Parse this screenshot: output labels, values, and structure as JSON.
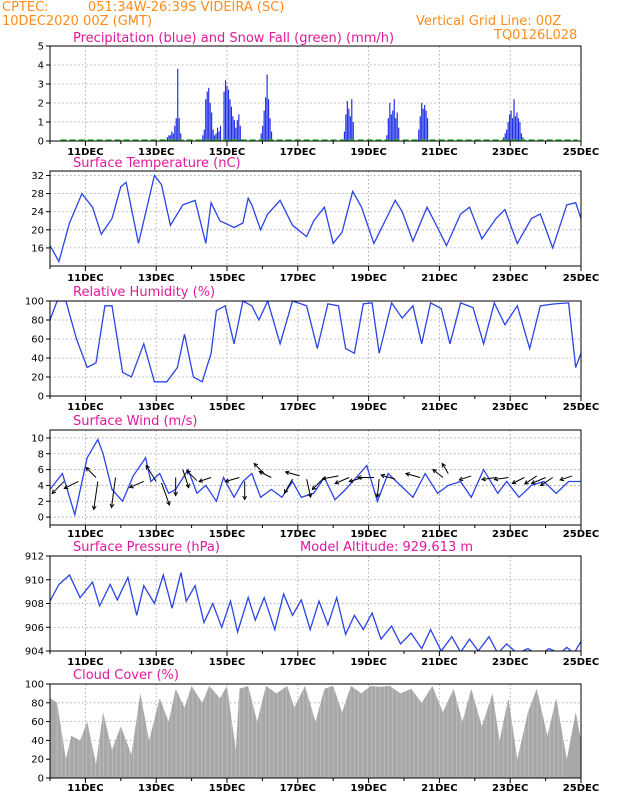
{
  "header": {
    "source": "CPTEC:",
    "location": "051:34W-26:39S  VIDEIRA (SC)",
    "datetime": "10DEC2020 00Z (GMT)",
    "grid_note": "Vertical Grid Line: 00Z",
    "code": "TQ0126L028"
  },
  "colors": {
    "header": "#ff8c1a",
    "title": "#e0189a",
    "line": "#2a44e6",
    "precip": "#1f2fe6",
    "snow": "#2eb82e",
    "cloud": "#a8a8a8"
  },
  "x_labels": [
    "11DEC",
    "13DEC",
    "15DEC",
    "17DEC",
    "19DEC",
    "21DEC",
    "23DEC",
    "25DEC"
  ],
  "chart_data": [
    {
      "id": "precip",
      "type": "bar",
      "title": "Precipitation (blue) and Snow Fall (green) (mm/h)",
      "ylim": [
        0,
        5
      ],
      "yticks": [
        0,
        1,
        2,
        3,
        4,
        5
      ],
      "series": [
        {
          "name": "Precipitation",
          "color": "#1f2fe6",
          "bursts": [
            {
              "day": 13.3,
              "values": [
                0.2,
                0.3,
                0.3,
                0.5,
                0.4,
                0.8,
                1.2,
                3.8,
                1.2,
                0.4
              ]
            },
            {
              "day": 14.3,
              "values": [
                0.3,
                0.6,
                2.2,
                2.6,
                2.8,
                2.0,
                1.5,
                0.6,
                0.3,
                0.4,
                0.7,
                0.5,
                0.8
              ]
            },
            {
              "day": 14.9,
              "values": [
                2.6,
                3.2,
                2.9,
                2.7,
                2.2,
                1.8,
                1.3,
                1.1,
                0.7,
                1.1,
                1.4,
                0.8
              ]
            },
            {
              "day": 15.95,
              "values": [
                0.4,
                0.8,
                1.6,
                2.3,
                3.5,
                2.2,
                1.2,
                0.5
              ]
            },
            {
              "day": 18.3,
              "values": [
                0.5,
                1.4,
                2.1,
                1.7,
                1.3,
                2.2,
                1.0
              ]
            },
            {
              "day": 19.5,
              "values": [
                0.3,
                1.2,
                2.0,
                1.4,
                1.6,
                2.2,
                1.2,
                1.5,
                0.7
              ]
            },
            {
              "day": 20.4,
              "values": [
                0.6,
                1.3,
                2.0,
                1.7,
                1.9,
                1.6,
                1.2
              ]
            },
            {
              "day": 22.8,
              "values": [
                0.2,
                0.4,
                0.6,
                1.0,
                1.4,
                1.6,
                1.2,
                2.2,
                1.3,
                1.5,
                1.2,
                1.0,
                0.4,
                0.2
              ]
            }
          ]
        },
        {
          "name": "Snow Fall",
          "color": "#2eb82e",
          "values": [
            0
          ]
        }
      ]
    },
    {
      "id": "temp",
      "type": "line",
      "title": "Surface Temperature (nC)",
      "ylim": [
        12,
        33
      ],
      "yticks": [
        16,
        20,
        24,
        28,
        32
      ],
      "x": [
        10,
        10.25,
        10.55,
        10.9,
        11.2,
        11.45,
        11.75,
        12.0,
        12.15,
        12.5,
        12.95,
        13.15,
        13.4,
        13.75,
        14.1,
        14.4,
        14.55,
        14.8,
        15.2,
        15.45,
        15.6,
        15.7,
        15.95,
        16.15,
        16.5,
        16.85,
        17.25,
        17.45,
        17.75,
        18.0,
        18.25,
        18.55,
        18.8,
        19.15,
        19.5,
        19.75,
        19.95,
        20.25,
        20.65,
        20.85,
        21.2,
        21.6,
        21.85,
        22.2,
        22.6,
        22.85,
        23.2,
        23.6,
        23.85,
        24.2,
        24.6,
        24.85,
        25.0
      ],
      "values": [
        16.5,
        13.0,
        21.5,
        28.0,
        25.0,
        19.0,
        22.5,
        29.5,
        30.5,
        17.0,
        32.0,
        30.0,
        21.0,
        25.5,
        26.5,
        17.0,
        26.0,
        22.0,
        20.5,
        21.5,
        27.0,
        25.5,
        20.0,
        23.5,
        26.5,
        21.0,
        18.5,
        22.0,
        25.0,
        17.0,
        19.5,
        28.5,
        25.0,
        17.0,
        22.5,
        26.5,
        24.0,
        17.5,
        25.0,
        22.0,
        16.5,
        23.5,
        25.0,
        18.0,
        22.5,
        24.5,
        17.0,
        22.5,
        23.5,
        16.0,
        25.5,
        26.0,
        22.5
      ]
    },
    {
      "id": "rh",
      "type": "line",
      "title": "Relative Humidity (%)",
      "ylim": [
        0,
        100
      ],
      "yticks": [
        0,
        20,
        40,
        60,
        80,
        100
      ],
      "x": [
        10,
        10.2,
        10.45,
        10.75,
        11.05,
        11.3,
        11.55,
        11.75,
        12.05,
        12.3,
        12.65,
        12.95,
        13.3,
        13.5,
        13.6,
        13.8,
        14.05,
        14.3,
        14.55,
        14.7,
        14.95,
        15.2,
        15.45,
        15.7,
        15.9,
        16.15,
        16.5,
        16.85,
        17.25,
        17.55,
        17.85,
        18.15,
        18.35,
        18.6,
        18.85,
        19.1,
        19.3,
        19.65,
        19.95,
        20.25,
        20.5,
        20.75,
        21.05,
        21.3,
        21.6,
        21.95,
        22.25,
        22.55,
        22.85,
        23.2,
        23.55,
        23.85,
        24.25,
        24.65,
        24.85,
        25.0
      ],
      "values": [
        80,
        100,
        100,
        60,
        30,
        35,
        95,
        95,
        25,
        20,
        55,
        15,
        15,
        25,
        30,
        65,
        20,
        15,
        45,
        90,
        95,
        55,
        100,
        95,
        80,
        100,
        55,
        100,
        95,
        50,
        97,
        95,
        50,
        45,
        97,
        98,
        45,
        98,
        82,
        95,
        55,
        98,
        92,
        55,
        98,
        93,
        55,
        98,
        75,
        95,
        50,
        95,
        97,
        98,
        30,
        45
      ]
    },
    {
      "id": "wind",
      "type": "line",
      "title": "Surface Wind (m/s)",
      "ylim": [
        -1,
        11
      ],
      "yticks": [
        0,
        2,
        4,
        6,
        8,
        10
      ],
      "x": [
        10,
        10.35,
        10.7,
        11.05,
        11.35,
        11.5,
        11.75,
        12.05,
        12.35,
        12.7,
        12.85,
        13.1,
        13.35,
        13.55,
        13.9,
        14.15,
        14.4,
        14.7,
        14.9,
        15.2,
        15.45,
        15.7,
        15.95,
        16.25,
        16.55,
        16.85,
        17.1,
        17.45,
        17.75,
        18.05,
        18.35,
        18.65,
        18.95,
        19.25,
        19.55,
        19.9,
        20.25,
        20.6,
        20.95,
        21.25,
        21.6,
        21.9,
        22.25,
        22.65,
        22.9,
        23.25,
        23.6,
        23.95,
        24.3,
        24.65,
        25.0
      ],
      "values": [
        3.5,
        5.5,
        0.3,
        7.5,
        9.8,
        8.0,
        3.5,
        2.0,
        5.2,
        7.5,
        4.5,
        5.5,
        3.0,
        3.5,
        6.0,
        3.0,
        4.0,
        2.0,
        5.0,
        2.5,
        4.5,
        5.5,
        2.5,
        3.5,
        2.5,
        4.5,
        2.5,
        3.0,
        5.0,
        2.2,
        3.5,
        5.0,
        6.5,
        2.0,
        5.5,
        4.0,
        2.5,
        5.5,
        3.0,
        4.0,
        4.5,
        2.5,
        6.0,
        3.0,
        4.5,
        2.5,
        4.0,
        4.5,
        3.0,
        4.5,
        4.5
      ],
      "arrows": [
        {
          "day": 10.4,
          "y": 4.5,
          "dx": -12,
          "dy": 12
        },
        {
          "day": 10.8,
          "y": 4.5,
          "dx": -14,
          "dy": 7
        },
        {
          "day": 11.3,
          "y": 5.0,
          "dx": -10,
          "dy": -10
        },
        {
          "day": 11.35,
          "y": 4.5,
          "dx": -4,
          "dy": 28
        },
        {
          "day": 11.85,
          "y": 5.0,
          "dx": -4,
          "dy": 30
        },
        {
          "day": 12.65,
          "y": 4.5,
          "dx": -14,
          "dy": 6
        },
        {
          "day": 13.0,
          "y": 4.5,
          "dx": -10,
          "dy": -16
        },
        {
          "day": 13.15,
          "y": 4.3,
          "dx": 8,
          "dy": 22
        },
        {
          "day": 13.55,
          "y": 5.0,
          "dx": 0,
          "dy": 18
        },
        {
          "day": 13.75,
          "y": 6.0,
          "dx": 6,
          "dy": 18
        },
        {
          "day": 14.15,
          "y": 4.6,
          "dx": -10,
          "dy": -10
        },
        {
          "day": 14.55,
          "y": 5.0,
          "dx": -12,
          "dy": 4
        },
        {
          "day": 15.35,
          "y": 5.0,
          "dx": -14,
          "dy": 4
        },
        {
          "day": 15.5,
          "y": 4.5,
          "dx": 0,
          "dy": 18
        },
        {
          "day": 16.05,
          "y": 5.5,
          "dx": -10,
          "dy": -10
        },
        {
          "day": 16.25,
          "y": 5.0,
          "dx": -12,
          "dy": -6
        },
        {
          "day": 16.85,
          "y": 4.8,
          "dx": -8,
          "dy": 14
        },
        {
          "day": 17.05,
          "y": 5.2,
          "dx": -14,
          "dy": -4
        },
        {
          "day": 17.25,
          "y": 4.8,
          "dx": 4,
          "dy": 18
        },
        {
          "day": 17.75,
          "y": 5.0,
          "dx": -12,
          "dy": 12
        },
        {
          "day": 18.15,
          "y": 5.2,
          "dx": -16,
          "dy": 3
        },
        {
          "day": 18.45,
          "y": 5.0,
          "dx": -14,
          "dy": 6
        },
        {
          "day": 18.85,
          "y": 5.0,
          "dx": -14,
          "dy": 4
        },
        {
          "day": 19.15,
          "y": 5.0,
          "dx": -16,
          "dy": 0
        },
        {
          "day": 19.3,
          "y": 4.8,
          "dx": -2,
          "dy": 18
        },
        {
          "day": 19.75,
          "y": 4.8,
          "dx": -14,
          "dy": -4
        },
        {
          "day": 20.45,
          "y": 5.0,
          "dx": -14,
          "dy": -4
        },
        {
          "day": 21.1,
          "y": 5.0,
          "dx": -10,
          "dy": -8
        },
        {
          "day": 21.25,
          "y": 5.5,
          "dx": -6,
          "dy": -10
        },
        {
          "day": 21.9,
          "y": 5.2,
          "dx": -12,
          "dy": 4
        },
        {
          "day": 22.6,
          "y": 5.0,
          "dx": -14,
          "dy": 2
        },
        {
          "day": 22.95,
          "y": 5.0,
          "dx": -14,
          "dy": 2
        },
        {
          "day": 23.4,
          "y": 5.0,
          "dx": -12,
          "dy": 6
        },
        {
          "day": 23.75,
          "y": 5.2,
          "dx": -12,
          "dy": 8
        },
        {
          "day": 24.0,
          "y": 5.0,
          "dx": -14,
          "dy": 6
        },
        {
          "day": 24.2,
          "y": 5.0,
          "dx": -12,
          "dy": 8
        },
        {
          "day": 24.75,
          "y": 5.2,
          "dx": -12,
          "dy": 4
        }
      ]
    },
    {
      "id": "pres",
      "type": "line",
      "title": "Surface Pressure (hPa)",
      "annotation": "Model Altitude: 929.613 m",
      "ylim": [
        904,
        912
      ],
      "yticks": [
        904,
        906,
        908,
        910,
        912
      ],
      "x": [
        10,
        10.25,
        10.55,
        10.85,
        11.2,
        11.4,
        11.7,
        11.9,
        12.2,
        12.45,
        12.65,
        12.95,
        13.2,
        13.45,
        13.7,
        13.85,
        14.1,
        14.35,
        14.6,
        14.85,
        15.1,
        15.3,
        15.6,
        15.8,
        16.05,
        16.35,
        16.6,
        16.85,
        17.1,
        17.35,
        17.6,
        17.85,
        18.1,
        18.35,
        18.6,
        18.85,
        19.1,
        19.35,
        19.65,
        19.9,
        20.2,
        20.5,
        20.75,
        21.05,
        21.35,
        21.6,
        21.85,
        22.1,
        22.4,
        22.65,
        22.9,
        23.2,
        23.5,
        23.8,
        24.1,
        24.4,
        24.6,
        24.8,
        25.0
      ],
      "values": [
        908.2,
        909.6,
        910.4,
        908.5,
        909.8,
        907.8,
        909.6,
        908.3,
        910.2,
        907.0,
        909.5,
        908.0,
        910.4,
        907.6,
        910.6,
        908.2,
        909.5,
        906.4,
        908.0,
        906.0,
        908.2,
        905.6,
        908.5,
        906.6,
        908.5,
        905.8,
        908.8,
        907.0,
        908.3,
        905.8,
        908.2,
        906.2,
        908.5,
        905.4,
        907.0,
        905.8,
        907.2,
        905.0,
        906.1,
        904.6,
        905.5,
        904.2,
        905.8,
        904.0,
        905.2,
        903.9,
        905.0,
        904.0,
        905.2,
        903.8,
        904.6,
        903.8,
        904.2,
        903.6,
        904.2,
        903.8,
        904.3,
        903.8,
        904.8
      ]
    },
    {
      "id": "cloud",
      "type": "area",
      "title": "Cloud Cover (%)",
      "ylim": [
        0,
        100
      ],
      "yticks": [
        0,
        20,
        40,
        60,
        80,
        100
      ],
      "x": [
        10,
        10.2,
        10.45,
        10.6,
        10.85,
        11.05,
        11.3,
        11.5,
        11.75,
        12.0,
        12.3,
        12.55,
        12.8,
        13.1,
        13.35,
        13.55,
        13.8,
        14.0,
        14.3,
        14.5,
        14.8,
        15.0,
        15.25,
        15.35,
        15.6,
        15.85,
        16.1,
        16.4,
        16.7,
        16.9,
        17.2,
        17.5,
        17.75,
        18.0,
        18.25,
        18.5,
        18.8,
        19.05,
        19.3,
        19.6,
        19.9,
        20.2,
        20.5,
        20.8,
        21.1,
        21.4,
        21.65,
        21.9,
        22.2,
        22.5,
        22.7,
        22.95,
        23.2,
        23.5,
        23.75,
        24.05,
        24.3,
        24.6,
        24.85,
        25.0
      ],
      "values": [
        85,
        80,
        20,
        45,
        40,
        60,
        15,
        70,
        30,
        55,
        25,
        90,
        40,
        85,
        60,
        95,
        75,
        98,
        80,
        98,
        85,
        98,
        30,
        95,
        98,
        60,
        98,
        90,
        98,
        75,
        98,
        60,
        95,
        98,
        70,
        98,
        90,
        98,
        97,
        98,
        90,
        95,
        80,
        98,
        70,
        95,
        60,
        95,
        55,
        90,
        40,
        85,
        20,
        70,
        95,
        45,
        85,
        20,
        70,
        40
      ]
    }
  ]
}
